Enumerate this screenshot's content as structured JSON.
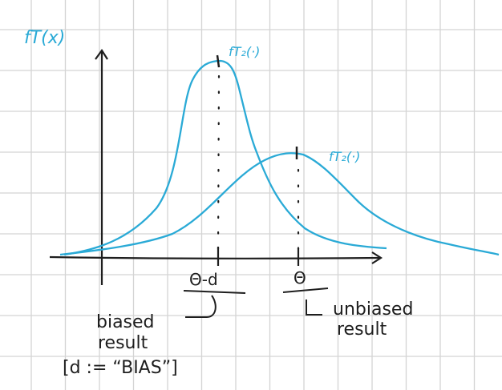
{
  "colors": {
    "grid": "#d4d4d4",
    "curve": "#2aaad6",
    "ink": "#1e1e1e",
    "background": "#ffffff"
  },
  "labels": {
    "y_axis": "fT(x)",
    "curve_tall": "fT₂(·)",
    "curve_wide": "fT₂(·)",
    "tick_biased": "Θ-d",
    "tick_unbiased": "Θ",
    "biased_line1": "biased",
    "biased_line2": "result",
    "bias_definition": "[d := “BIAS”]",
    "unbiased_line1": "unbiased",
    "unbiased_line2": "result"
  }
}
